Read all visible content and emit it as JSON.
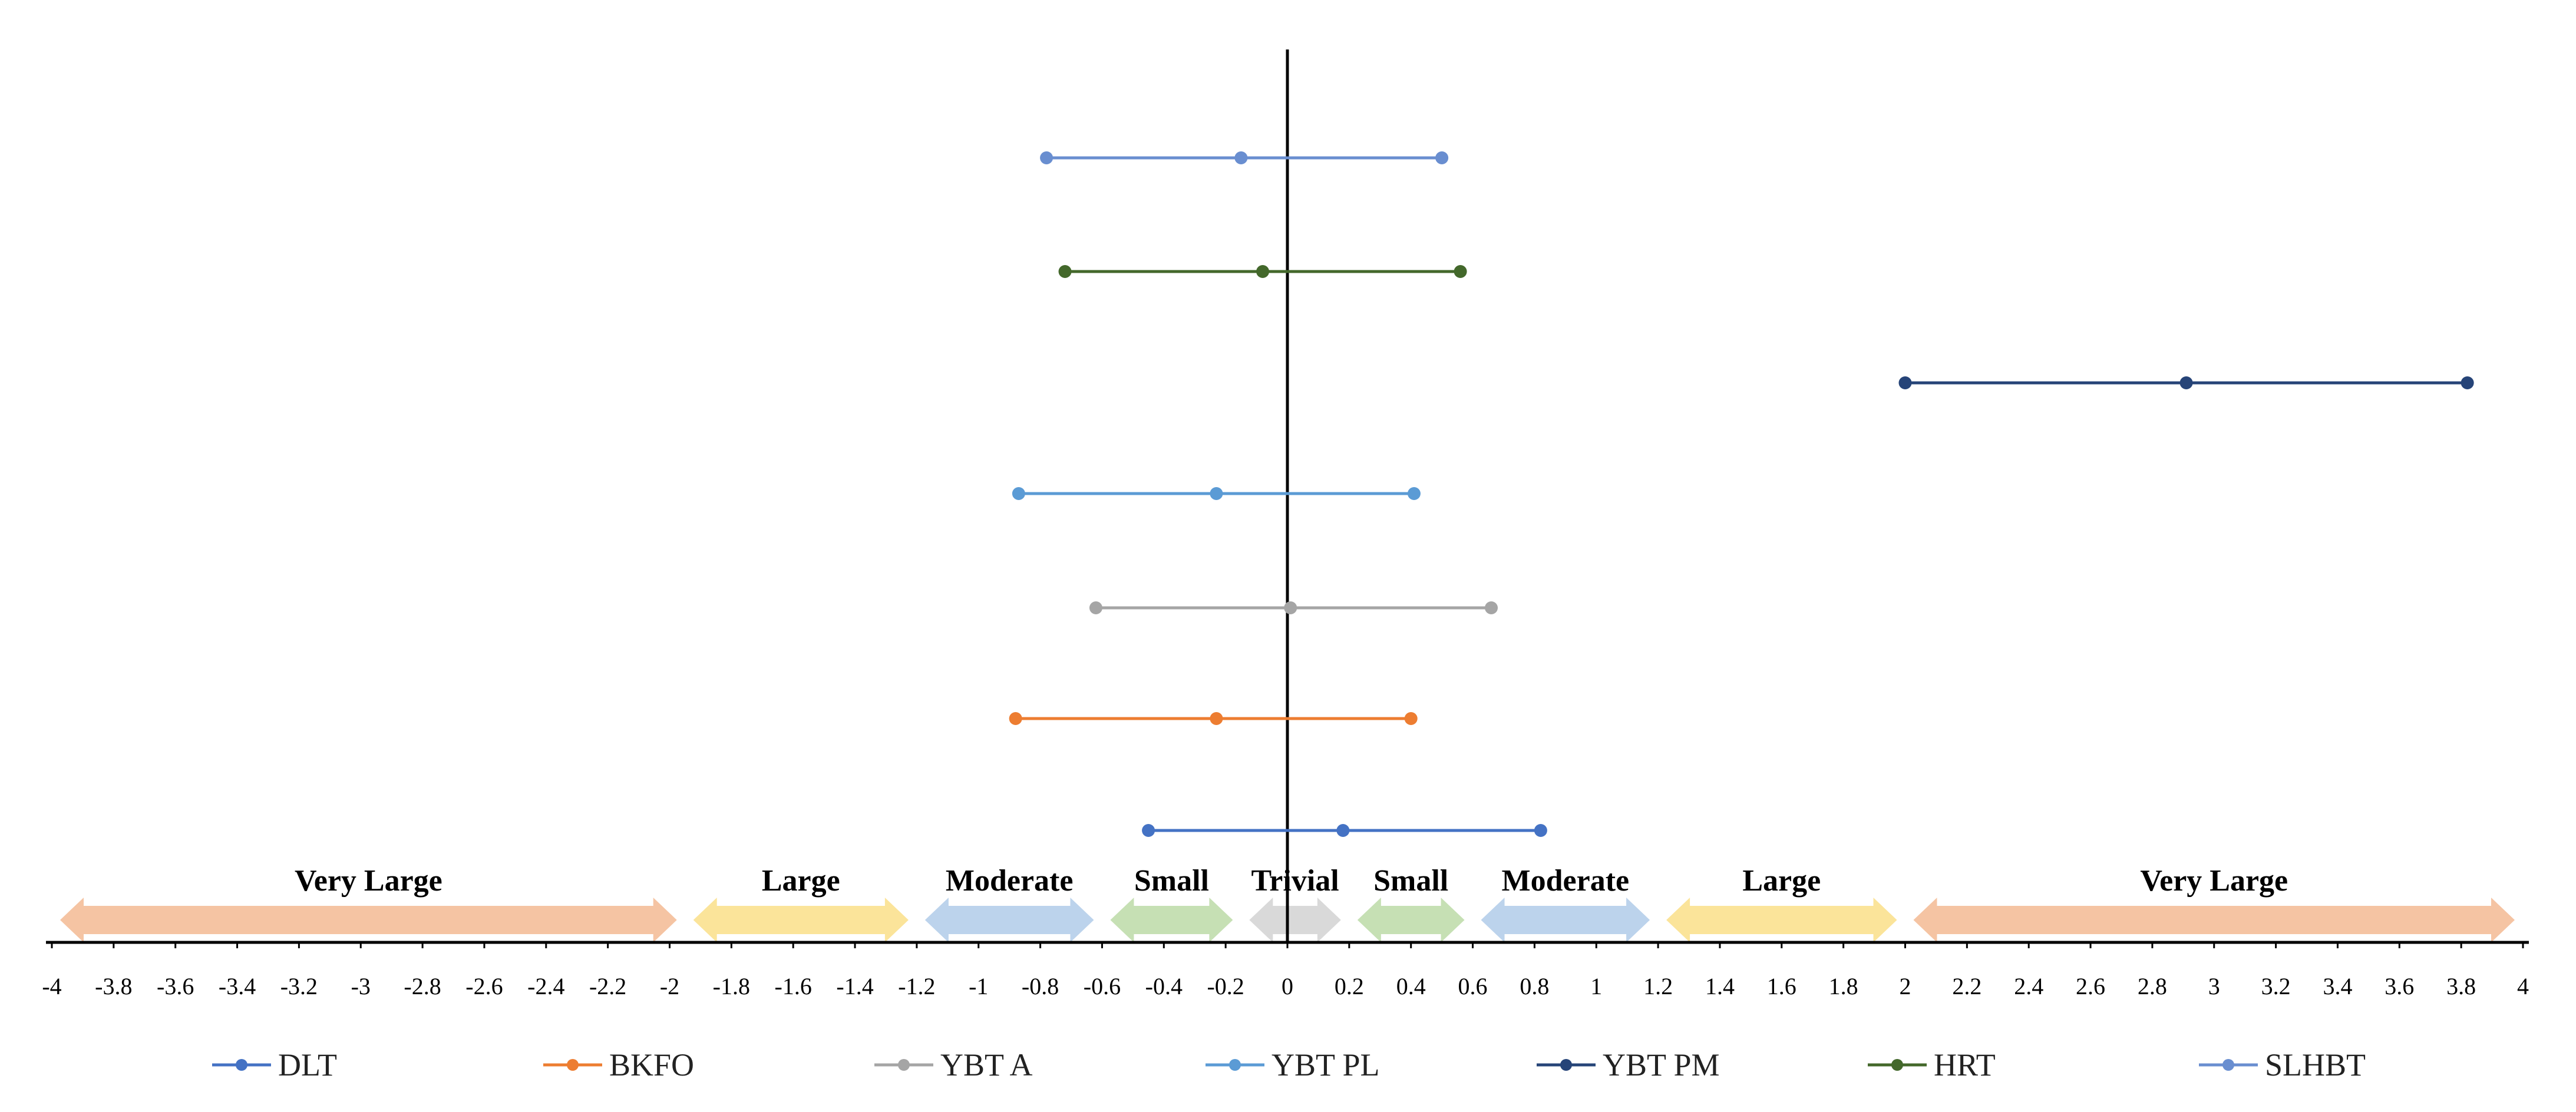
{
  "chart_data": {
    "type": "forest",
    "title": "",
    "xlabel": "",
    "ylabel": "",
    "xlim": [
      -4,
      4
    ],
    "x_ticks": [
      "-4",
      "-3.8",
      "-3.6",
      "-3.4",
      "-3.2",
      "-3",
      "-2.8",
      "-2.6",
      "-2.4",
      "-2.2",
      "-2",
      "-1.8",
      "-1.6",
      "-1.4",
      "-1.2",
      "-1",
      "-0.8",
      "-0.6",
      "-0.4",
      "-0.2",
      "0",
      "0.2",
      "0.4",
      "0.6",
      "0.8",
      "1",
      "1.2",
      "1.4",
      "1.6",
      "1.8",
      "2",
      "2.2",
      "2.4",
      "2.6",
      "2.8",
      "3",
      "3.2",
      "3.4",
      "3.6",
      "3.8",
      "4"
    ],
    "bands": [
      {
        "label": "Very Large",
        "from": -4.0,
        "to": -1.95,
        "color": "#f5c4a3"
      },
      {
        "label": "Large",
        "from": -1.95,
        "to": -1.2,
        "color": "#fbe49a"
      },
      {
        "label": "Moderate",
        "from": -1.2,
        "to": -0.6,
        "color": "#bcd3ec"
      },
      {
        "label": "Small",
        "from": -0.6,
        "to": -0.15,
        "color": "#c6e0b4"
      },
      {
        "label": "Trivial",
        "from": -0.15,
        "to": 0.2,
        "color": "#d9d9d9"
      },
      {
        "label": "Small",
        "from": 0.2,
        "to": 0.6,
        "color": "#c6e0b4"
      },
      {
        "label": "Moderate",
        "from": 0.6,
        "to": 1.2,
        "color": "#bcd3ec"
      },
      {
        "label": "Large",
        "from": 1.2,
        "to": 2.0,
        "color": "#fbe49a"
      },
      {
        "label": "Very Large",
        "from": 2.0,
        "to": 4.0,
        "color": "#f5c4a3"
      }
    ],
    "series": [
      {
        "name": "DLT",
        "color": "#4472c4",
        "low": -0.45,
        "point": 0.18,
        "high": 0.82
      },
      {
        "name": "BKFO",
        "color": "#ed7d31",
        "low": -0.88,
        "point": -0.23,
        "high": 0.4
      },
      {
        "name": "YBT A",
        "color": "#a5a5a5",
        "low": -0.62,
        "point": 0.01,
        "high": 0.66
      },
      {
        "name": "YBT PL",
        "color": "#5b9bd5",
        "low": -0.87,
        "point": -0.23,
        "high": 0.41
      },
      {
        "name": "YBT PM",
        "color": "#264478",
        "low": 2.0,
        "point": 2.91,
        "high": 3.82
      },
      {
        "name": "HRT",
        "color": "#43682b",
        "low": -0.72,
        "point": -0.08,
        "high": 0.56
      },
      {
        "name": "SLHBT",
        "color": "#698ed0",
        "low": -0.78,
        "point": -0.15,
        "high": 0.5
      }
    ]
  }
}
